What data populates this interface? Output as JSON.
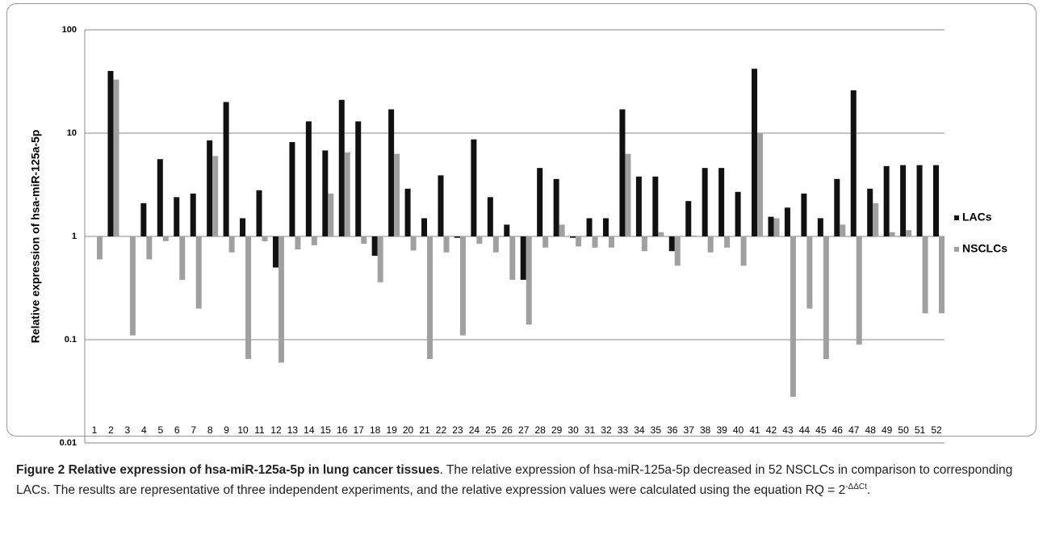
{
  "chart_data": {
    "type": "bar",
    "log_scale": true,
    "grid": true,
    "legend": "right",
    "ylabel": "Relative expression of hsa-miR-125a-5p",
    "categories": [
      "1",
      "2",
      "3",
      "4",
      "5",
      "6",
      "7",
      "8",
      "9",
      "10",
      "11",
      "12",
      "13",
      "14",
      "15",
      "16",
      "17",
      "18",
      "19",
      "20",
      "21",
      "22",
      "23",
      "24",
      "25",
      "26",
      "27",
      "28",
      "29",
      "30",
      "31",
      "32",
      "33",
      "34",
      "35",
      "36",
      "37",
      "38",
      "39",
      "40",
      "41",
      "42",
      "43",
      "44",
      "45",
      "46",
      "47",
      "48",
      "49",
      "50",
      "51",
      "52"
    ],
    "series": [
      {
        "name": "LACs",
        "color": "#111111",
        "values": [
          1.0,
          40,
          1.0,
          2.1,
          5.6,
          2.4,
          2.6,
          8.5,
          20,
          1.5,
          2.8,
          0.5,
          8.2,
          13,
          6.8,
          21,
          13,
          0.65,
          17,
          2.9,
          1.5,
          3.9,
          0.97,
          8.7,
          2.4,
          1.3,
          0.38,
          4.6,
          3.6,
          0.97,
          1.5,
          1.5,
          17,
          3.8,
          3.8,
          0.72,
          2.2,
          4.6,
          4.6,
          2.7,
          42,
          1.55,
          1.9,
          2.6,
          1.5,
          3.6,
          26,
          2.9,
          4.8,
          4.9,
          4.9,
          4.9
        ]
      },
      {
        "name": "NSCLCs",
        "color": "#a0a0a0",
        "values": [
          0.6,
          33,
          0.11,
          0.6,
          0.9,
          0.38,
          0.2,
          6.0,
          0.7,
          0.065,
          0.9,
          0.06,
          0.75,
          0.82,
          2.6,
          6.5,
          0.85,
          0.36,
          6.3,
          0.73,
          0.065,
          0.7,
          0.11,
          0.85,
          0.7,
          0.38,
          0.14,
          0.78,
          1.3,
          0.8,
          0.78,
          0.78,
          6.3,
          0.72,
          1.1,
          0.52,
          1.02,
          0.7,
          0.78,
          0.52,
          10,
          1.5,
          0.028,
          0.2,
          0.065,
          1.3,
          0.09,
          2.1,
          1.1,
          1.15,
          0.18,
          0.18
        ]
      }
    ],
    "ylim": [
      0.01,
      100
    ],
    "yticks": [
      100,
      10,
      1,
      0.1,
      0.01
    ]
  },
  "caption": {
    "title": "Figure 2 Relative expression of hsa-miR-125a-5p in lung cancer tissues",
    "text": ". The relative expression of hsa-miR-125a-5p decreased in 52 NSCLCs in comparison to corresponding LACs. The results are representative of three independent experiments, and the relative expression values were calculated using the equation RQ = 2",
    "superscript": "-ΔΔCt",
    "end": "."
  }
}
